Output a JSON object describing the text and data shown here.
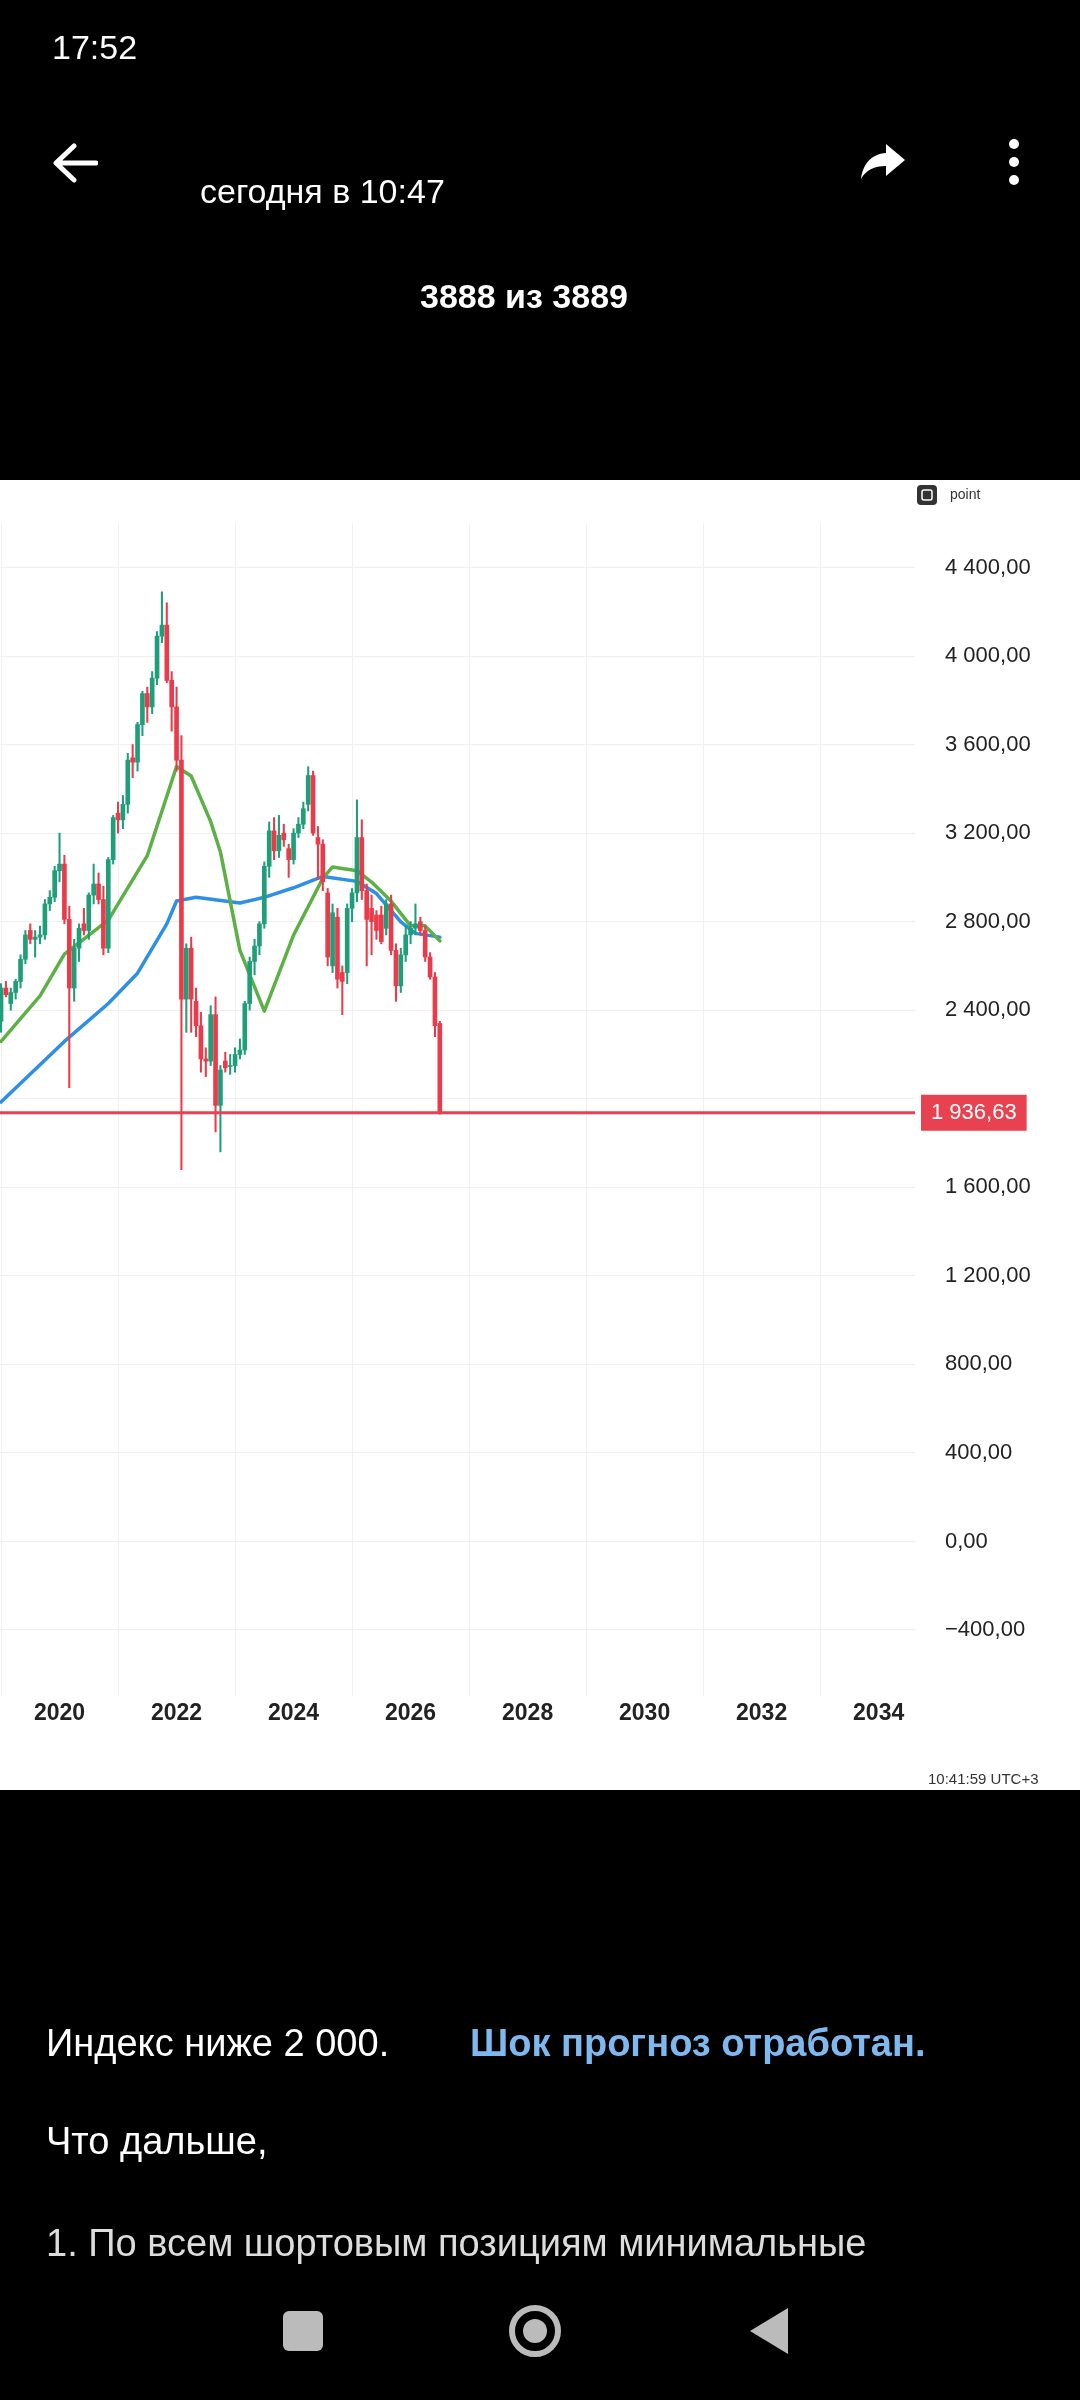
{
  "chart_data": {
    "type": "candlestick",
    "x": [
      "2019-01",
      "2019-02",
      "2019-03",
      "2019-04",
      "2019-05",
      "2019-06",
      "2019-07",
      "2019-08",
      "2019-09",
      "2019-10",
      "2019-11",
      "2019-12",
      "2020-01",
      "2020-02",
      "2020-03",
      "2020-04",
      "2020-05",
      "2020-06",
      "2020-07",
      "2020-08",
      "2020-09",
      "2020-10",
      "2020-11",
      "2020-12",
      "2021-01",
      "2021-02",
      "2021-03",
      "2021-04",
      "2021-05",
      "2021-06",
      "2021-07",
      "2021-08",
      "2021-09",
      "2021-10",
      "2021-11",
      "2021-12",
      "2022-01",
      "2022-02",
      "2022-03",
      "2022-04",
      "2022-05",
      "2022-06",
      "2022-07",
      "2022-08",
      "2022-09",
      "2022-10",
      "2022-11",
      "2022-12",
      "2023-01",
      "2023-02",
      "2023-03",
      "2023-04",
      "2023-05",
      "2023-06",
      "2023-07",
      "2023-08",
      "2023-09",
      "2023-10",
      "2023-11",
      "2023-12",
      "2024-01",
      "2024-02",
      "2024-03",
      "2024-04",
      "2024-05",
      "2024-06",
      "2024-07",
      "2024-08",
      "2024-09",
      "2024-10",
      "2024-11",
      "2024-12",
      "2025-01",
      "2025-02",
      "2025-03",
      "2025-04",
      "2025-05",
      "2025-06",
      "2025-07",
      "2025-08",
      "2025-09",
      "2025-10",
      "2025-11",
      "2025-12",
      "2026-01",
      "2026-02",
      "2026-03",
      "2026-04",
      "2026-05",
      "2026-06",
      "2026-07"
    ],
    "ohlc": [
      [
        2350,
        2520,
        2300,
        2500
      ],
      [
        2500,
        2530,
        2460,
        2470
      ],
      [
        2430,
        2500,
        2400,
        2480
      ],
      [
        2480,
        2540,
        2450,
        2530
      ],
      [
        2530,
        2650,
        2500,
        2630
      ],
      [
        2630,
        2760,
        2610,
        2740
      ],
      [
        2760,
        2790,
        2700,
        2720
      ],
      [
        2720,
        2760,
        2640,
        2730
      ],
      [
        2730,
        2780,
        2700,
        2740
      ],
      [
        2740,
        2900,
        2720,
        2880
      ],
      [
        2880,
        2940,
        2850,
        2910
      ],
      [
        2910,
        3050,
        2890,
        3030
      ],
      [
        3030,
        3200,
        2980,
        3060
      ],
      [
        3060,
        3100,
        2790,
        2810
      ],
      [
        2810,
        2870,
        2050,
        2500
      ],
      [
        2500,
        2720,
        2440,
        2680
      ],
      [
        2680,
        2790,
        2620,
        2770
      ],
      [
        2790,
        2860,
        2740,
        2760
      ],
      [
        2760,
        2930,
        2720,
        2920
      ],
      [
        2920,
        3060,
        2880,
        2970
      ],
      [
        2970,
        3020,
        2880,
        2900
      ],
      [
        2900,
        2960,
        2650,
        2680
      ],
      [
        2680,
        3090,
        2660,
        3080
      ],
      [
        3080,
        3280,
        3060,
        3270
      ],
      [
        3290,
        3340,
        3200,
        3260
      ],
      [
        3260,
        3370,
        3220,
        3330
      ],
      [
        3330,
        3560,
        3290,
        3530
      ],
      [
        3540,
        3600,
        3450,
        3520
      ],
      [
        3520,
        3700,
        3480,
        3690
      ],
      [
        3690,
        3840,
        3640,
        3830
      ],
      [
        3830,
        3860,
        3700,
        3770
      ],
      [
        3770,
        3930,
        3740,
        3900
      ],
      [
        3900,
        4110,
        3870,
        4090
      ],
      [
        4090,
        4290,
        4060,
        4140
      ],
      [
        4140,
        4240,
        3880,
        3890
      ],
      [
        3890,
        3930,
        3660,
        3770
      ],
      [
        3770,
        3860,
        3480,
        3530
      ],
      [
        3530,
        3640,
        1680,
        2450
      ],
      [
        2450,
        2700,
        2300,
        2680
      ],
      [
        2680,
        2730,
        2300,
        2450
      ],
      [
        2440,
        2500,
        2280,
        2330
      ],
      [
        2330,
        2390,
        2120,
        2180
      ],
      [
        2180,
        2230,
        2100,
        2170
      ],
      [
        2170,
        2420,
        2150,
        2380
      ],
      [
        2380,
        2460,
        1850,
        1970
      ],
      [
        1970,
        2150,
        1760,
        2130
      ],
      [
        2170,
        2210,
        2120,
        2140
      ],
      [
        2150,
        2200,
        2110,
        2150
      ],
      [
        2150,
        2230,
        2120,
        2200
      ],
      [
        2200,
        2270,
        2180,
        2220
      ],
      [
        2220,
        2440,
        2200,
        2430
      ],
      [
        2430,
        2640,
        2400,
        2620
      ],
      [
        2620,
        2720,
        2560,
        2690
      ],
      [
        2690,
        2800,
        2650,
        2790
      ],
      [
        2790,
        3070,
        2770,
        3050
      ],
      [
        3050,
        3250,
        3000,
        3210
      ],
      [
        3210,
        3270,
        3080,
        3120
      ],
      [
        3120,
        3280,
        3090,
        3190
      ],
      [
        3200,
        3240,
        3140,
        3170
      ],
      [
        3130,
        3150,
        3000,
        3080
      ],
      [
        3080,
        3220,
        3060,
        3200
      ],
      [
        3200,
        3270,
        3180,
        3240
      ],
      [
        3240,
        3340,
        3220,
        3310
      ],
      [
        3330,
        3500,
        3300,
        3460
      ],
      [
        3460,
        3480,
        3190,
        3200
      ],
      [
        3180,
        3230,
        2990,
        3150
      ],
      [
        3150,
        3170,
        2940,
        2980
      ],
      [
        2930,
        2950,
        2600,
        2640
      ],
      [
        2600,
        2880,
        2570,
        2840
      ],
      [
        2820,
        2860,
        2500,
        2540
      ],
      [
        2570,
        2600,
        2380,
        2530
      ],
      [
        2570,
        2880,
        2520,
        2860
      ],
      [
        2860,
        2950,
        2800,
        2930
      ],
      [
        2930,
        3350,
        2890,
        3180
      ],
      [
        3180,
        3260,
        2900,
        2940
      ],
      [
        2940,
        2970,
        2600,
        2810
      ],
      [
        2860,
        2920,
        2650,
        2800
      ],
      [
        2830,
        2850,
        2720,
        2760
      ],
      [
        2830,
        2870,
        2700,
        2710
      ],
      [
        2770,
        2900,
        2740,
        2880
      ],
      [
        2880,
        2920,
        2650,
        2670
      ],
      [
        2670,
        2700,
        2440,
        2510
      ],
      [
        2510,
        2680,
        2480,
        2650
      ],
      [
        2650,
        2780,
        2620,
        2740
      ],
      [
        2740,
        2800,
        2700,
        2770
      ],
      [
        2770,
        2880,
        2740,
        2790
      ],
      [
        2800,
        2820,
        2740,
        2760
      ],
      [
        2760,
        2780,
        2620,
        2640
      ],
      [
        2640,
        2660,
        2540,
        2550
      ],
      [
        2550,
        2570,
        2280,
        2330
      ],
      [
        2340,
        2350,
        1930,
        1936.63
      ]
    ],
    "series": [
      {
        "type": "line",
        "color": "#5cb045",
        "x": [
          "2019-01",
          "2019-09",
          "2020-02",
          "2020-11",
          "2021-07",
          "2022-01",
          "2022-04",
          "2022-08",
          "2022-10",
          "2023-02",
          "2023-07",
          "2024-01",
          "2024-07",
          "2024-09",
          "2025-02",
          "2025-05",
          "2025-09",
          "2026-01",
          "2026-04",
          "2026-07"
        ],
        "values": [
          2259,
          2465,
          2653,
          2807,
          3098,
          3501,
          3458,
          3252,
          3115,
          2670,
          2396,
          2739,
          2996,
          3047,
          3030,
          2979,
          2893,
          2781,
          2781,
          2713
        ]
      },
      {
        "type": "line",
        "color": "#2e8fe6",
        "x": [
          "2019-01",
          "2020-02",
          "2020-11",
          "2021-05",
          "2021-11",
          "2022-01",
          "2022-05",
          "2023-02",
          "2023-07",
          "2024-01",
          "2024-07",
          "2025-02",
          "2025-06",
          "2025-11",
          "2026-02",
          "2026-07"
        ],
        "values": [
          1985,
          2259,
          2430,
          2567,
          2790,
          2893,
          2910,
          2884,
          2910,
          2953,
          3004,
          2982,
          2927,
          2799,
          2747,
          2730
        ]
      }
    ],
    "xlim": [
      "2018-12-25",
      "2034-08-15"
    ],
    "xticks": [
      "2020",
      "2022",
      "2024",
      "2026",
      "2028",
      "2030",
      "2032",
      "2034"
    ],
    "ylim": [
      -700,
      4600
    ],
    "yticks": [
      {
        "value": -400,
        "label": "−400,00"
      },
      {
        "value": 0,
        "label": "0,00"
      },
      {
        "value": 400,
        "label": "400,00"
      },
      {
        "value": 800,
        "label": "800,00"
      },
      {
        "value": 1200,
        "label": "1 200,00"
      },
      {
        "value": 1600,
        "label": "1 600,00"
      },
      {
        "value": 2000,
        "label": null
      },
      {
        "value": 2400,
        "label": "2 400,00"
      },
      {
        "value": 2800,
        "label": "2 800,00"
      },
      {
        "value": 3200,
        "label": "3 200,00"
      },
      {
        "value": 3600,
        "label": "3 600,00"
      },
      {
        "value": 4000,
        "label": "4 000,00"
      },
      {
        "value": 4400,
        "label": "4 400,00"
      }
    ],
    "ref_lines": [
      {
        "axis": "y",
        "value": 1936.63,
        "label": "1 936,63",
        "color": "#e8414f"
      }
    ],
    "grid": true,
    "annotations": [
      "17:52",
      "сегодня в 10:47",
      "3888 из 3889",
      "point",
      "10:41:59 UTC+3",
      "Индекс ниже 2 000.",
      "Шок прогноз отработан.",
      "Что дальше,",
      "1. По всем шортовым позициям минимальные"
    ]
  }
}
